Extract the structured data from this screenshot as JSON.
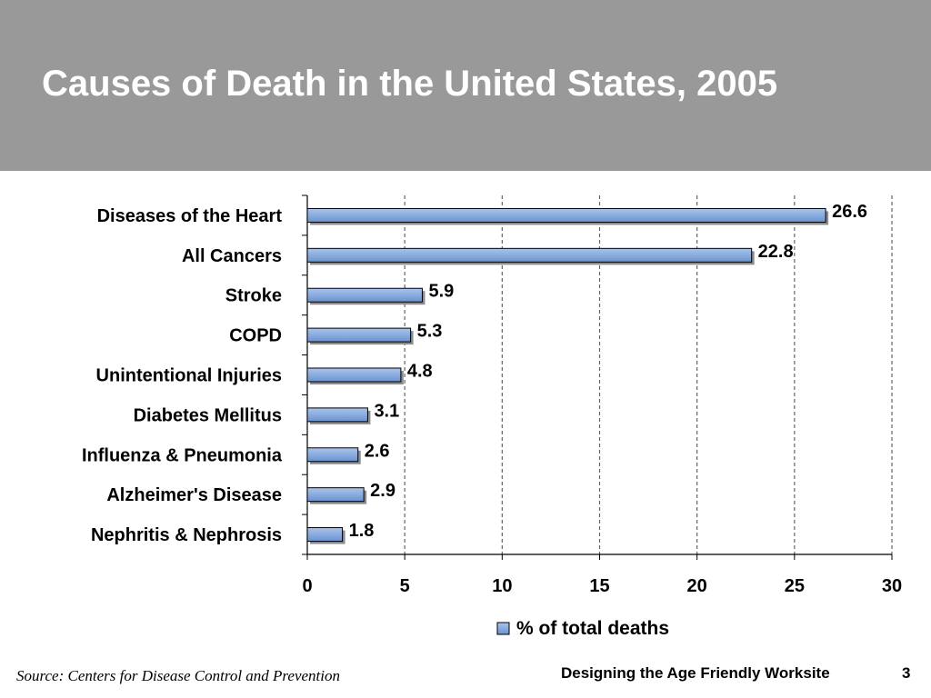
{
  "slide": {
    "title": "Causes of Death in the United States, 2005",
    "source": "Source: Centers for Disease Control and Prevention",
    "footer": "Designing the Age Friendly Worksite",
    "page_number": "3"
  },
  "colors": {
    "header_bg": "#999999",
    "bar_fill": "#6b93d0",
    "bar_shadow": "#8c8c8c"
  },
  "chart_data": {
    "type": "bar",
    "orientation": "horizontal",
    "title": "",
    "xlabel": "",
    "ylabel": "",
    "categories": [
      "Diseases of the Heart",
      "All Cancers",
      "Stroke",
      "COPD",
      "Unintentional Injuries",
      "Diabetes Mellitus",
      "Influenza & Pneumonia",
      "Alzheimer's Disease",
      "Nephritis & Nephrosis"
    ],
    "series": [
      {
        "name": "% of total deaths",
        "values": [
          26.6,
          22.8,
          5.9,
          5.3,
          4.8,
          3.1,
          2.6,
          2.9,
          1.8
        ],
        "labels": [
          "26.6",
          "22.8",
          "5.9",
          "5.3",
          "4.8",
          "3.1",
          "2.6",
          "2.9",
          "1.8"
        ]
      }
    ],
    "xlim": [
      0,
      30
    ],
    "xticks": [
      "0",
      "5",
      "10",
      "15",
      "20",
      "25",
      "30"
    ],
    "grid": "vertical dashed",
    "legend": "bottom"
  }
}
